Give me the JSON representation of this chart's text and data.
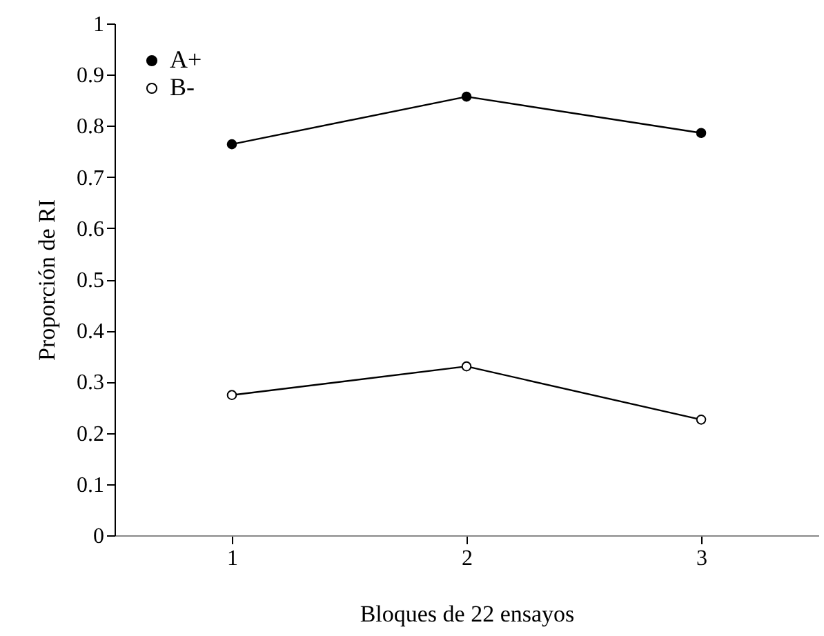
{
  "chart_data": {
    "type": "line",
    "xlabel": "Bloques de 22 ensayos",
    "ylabel": "Proporción de RI",
    "x": [
      1,
      2,
      3
    ],
    "xlim": [
      0.5,
      3.5
    ],
    "xticks": [
      1,
      2,
      3
    ],
    "ylim": [
      0,
      1
    ],
    "yticks": [
      0,
      0.1,
      0.2,
      0.3,
      0.4,
      0.5,
      0.6,
      0.7,
      0.8,
      0.9,
      1
    ],
    "series": [
      {
        "name": "A+",
        "color": "#000000",
        "values": [
          0.764,
          0.857,
          0.786
        ]
      },
      {
        "name": "B-",
        "color": "#000000",
        "values": [
          0.274,
          0.33,
          0.226
        ]
      }
    ],
    "marker": "circle",
    "line_style": "solid",
    "legend": "top left",
    "grid": false
  }
}
